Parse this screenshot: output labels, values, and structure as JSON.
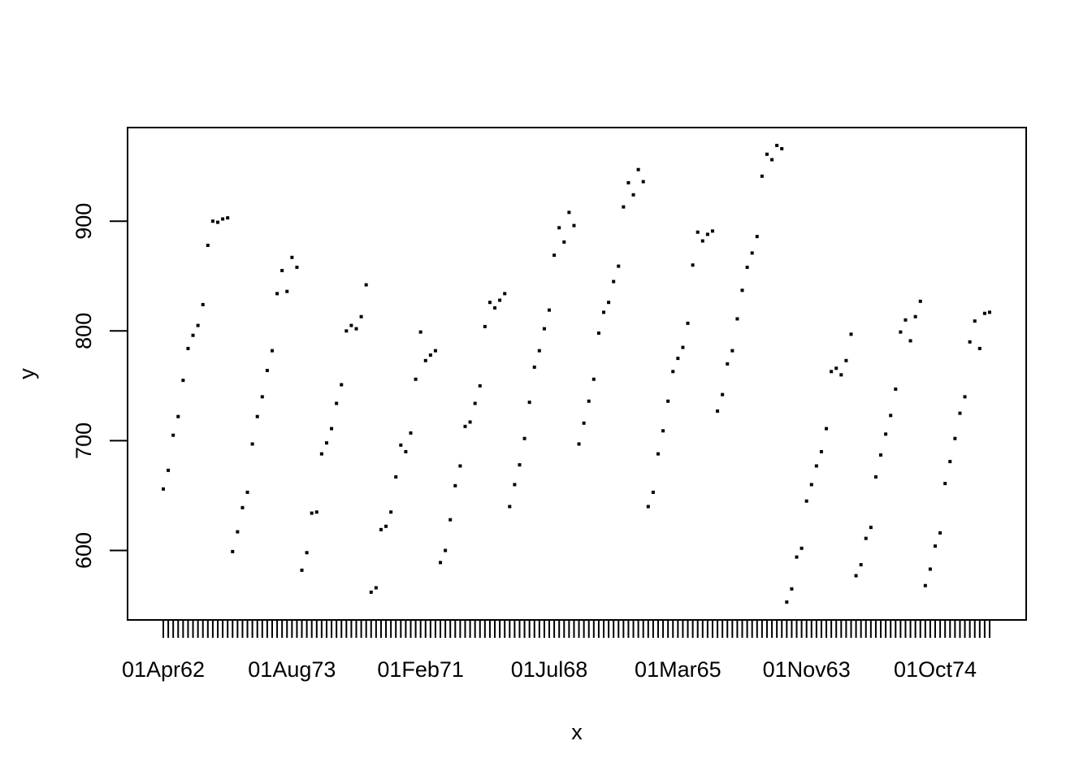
{
  "chart_data": {
    "type": "scatter",
    "title": "",
    "xlabel": "x",
    "ylabel": "y",
    "x_tick_labels": [
      "01Apr62",
      "01Aug73",
      "01Feb71",
      "01Jul68",
      "01Mar65",
      "01Nov63",
      "01Oct74"
    ],
    "y_ticks": [
      600,
      700,
      800,
      900
    ],
    "y_tick_labels": [
      "600",
      "700",
      "800",
      "900"
    ],
    "ylim": [
      553,
      969
    ],
    "grid": false,
    "legend": "none",
    "point_color": "#000000",
    "series": [
      {
        "values": [
          656,
          673,
          705,
          722,
          755,
          784,
          796,
          805,
          824,
          878,
          900,
          899,
          902,
          903,
          599,
          617,
          639,
          653,
          697,
          722,
          740,
          764,
          782,
          834,
          855,
          836,
          867,
          858,
          582,
          598,
          634,
          635,
          688,
          698,
          711,
          734,
          751,
          800,
          805,
          802,
          813,
          842,
          562,
          566,
          619,
          622,
          635,
          667,
          696,
          690,
          707,
          756,
          799,
          773,
          778,
          782,
          589,
          600,
          628,
          659,
          677,
          713,
          717,
          734,
          750,
          804,
          826,
          821,
          828,
          834,
          640,
          660,
          678,
          702,
          735,
          767,
          782,
          802,
          819,
          869,
          894,
          881,
          908,
          896,
          697,
          716,
          736,
          756,
          798,
          817,
          826,
          845,
          859,
          913,
          935,
          924,
          947,
          936,
          640,
          653,
          688,
          709,
          736,
          763,
          775,
          785,
          807,
          860,
          890,
          882,
          888,
          891,
          727,
          742,
          770,
          782,
          811,
          837,
          858,
          871,
          886,
          941,
          961,
          956,
          969,
          966,
          553,
          565,
          594,
          602,
          645,
          660,
          677,
          690,
          711,
          763,
          766,
          760,
          773,
          797,
          577,
          587,
          611,
          621,
          667,
          687,
          706,
          723,
          747,
          799,
          810,
          791,
          813,
          827,
          568,
          583,
          604,
          616,
          661,
          681,
          702,
          725,
          740,
          790,
          809,
          784,
          816,
          817
        ]
      }
    ]
  }
}
